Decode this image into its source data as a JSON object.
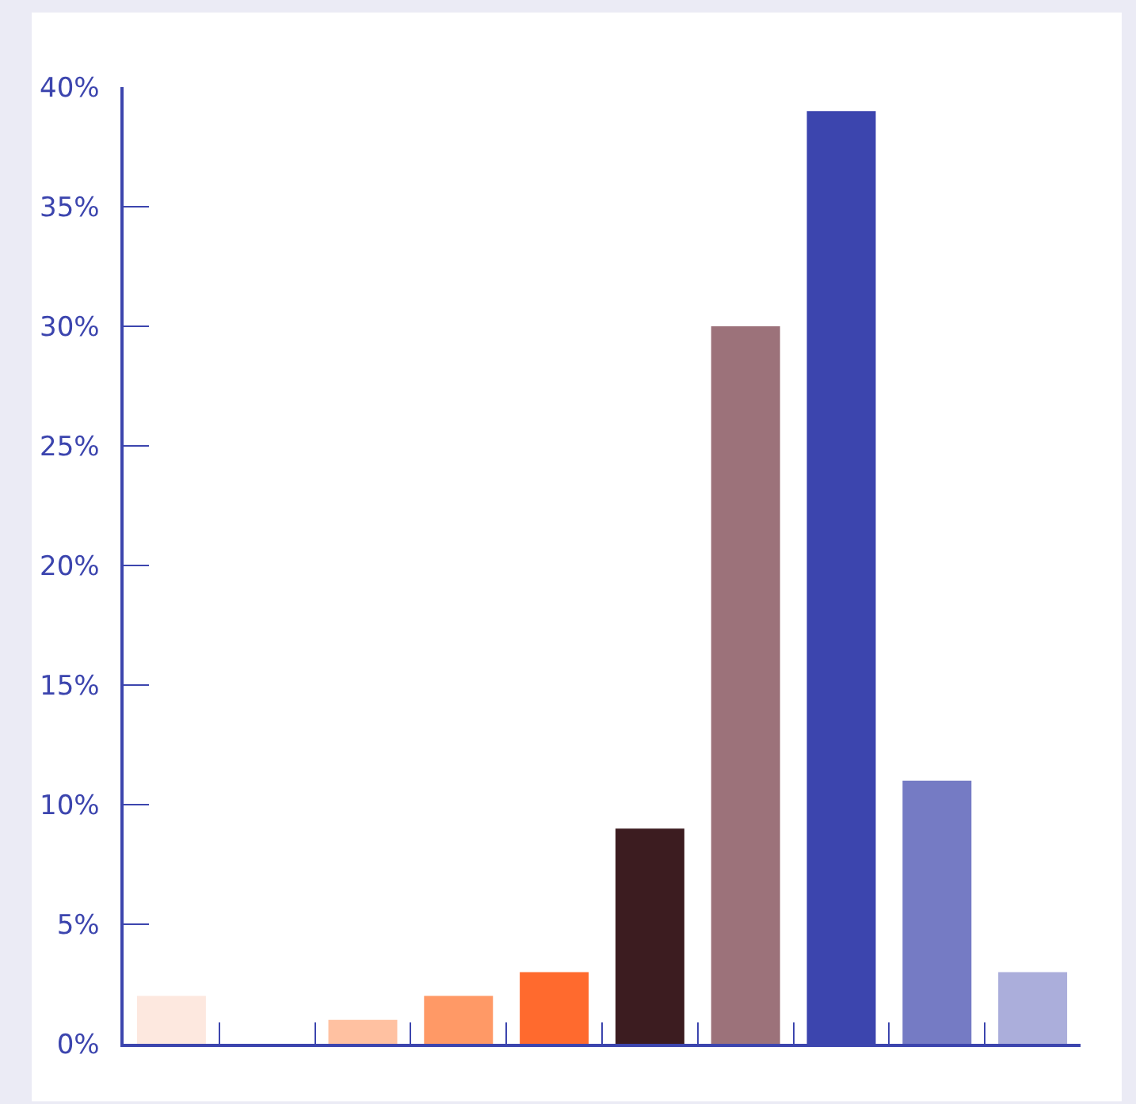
{
  "chart_data": {
    "type": "bar",
    "categories": [
      null,
      null,
      null,
      null,
      null,
      null,
      null,
      null,
      null,
      null
    ],
    "values": [
      2,
      0,
      1,
      2,
      3,
      9,
      30,
      39,
      11,
      3
    ],
    "colors": [
      "#fde8df",
      "#ffffff",
      "#ffc1a1",
      "#ff9966",
      "#ff6a2e",
      "#3c1c20",
      "#9c727a",
      "#3c45ae",
      "#757bc4",
      "#abaedb"
    ],
    "ylim": [
      0,
      40
    ],
    "yticks": [
      {
        "value": 0,
        "label": "0%"
      },
      {
        "value": 5,
        "label": "5%"
      },
      {
        "value": 10,
        "label": "10%"
      },
      {
        "value": 15,
        "label": "15%"
      },
      {
        "value": 20,
        "label": "20%"
      },
      {
        "value": 25,
        "label": "25%"
      },
      {
        "value": 30,
        "label": "30%"
      },
      {
        "value": 35,
        "label": "35%"
      },
      {
        "value": 40,
        "label": "40%"
      }
    ],
    "tick_labels": "y"
  }
}
